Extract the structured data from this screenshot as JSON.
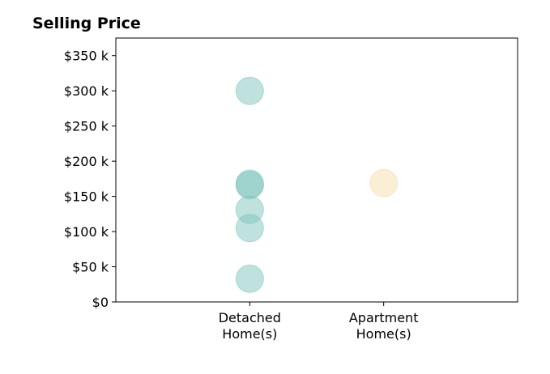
{
  "chart_data": {
    "type": "scatter",
    "title": "Selling Price",
    "xlabel": "",
    "ylabel": "",
    "categories": [
      [
        "Detached",
        "Home(s)"
      ],
      [
        "Apartment",
        "Home(s)"
      ]
    ],
    "xlim": [
      -1,
      2
    ],
    "ylim": [
      0,
      375000
    ],
    "y_ticks": [
      0,
      50000,
      100000,
      150000,
      200000,
      250000,
      300000,
      350000
    ],
    "y_tick_labels": [
      "$0",
      "$50 k",
      "$100 k",
      "$150 k",
      "$200 k",
      "$250 k",
      "$300 k",
      "$350 k"
    ],
    "grid": false,
    "series": [
      {
        "category": 0,
        "color": "#80c6bd",
        "values": [
          300000,
          168000,
          166000,
          131000,
          105000,
          33000
        ]
      },
      {
        "category": 1,
        "color": "#f5deb0",
        "values": [
          169000
        ]
      }
    ]
  }
}
